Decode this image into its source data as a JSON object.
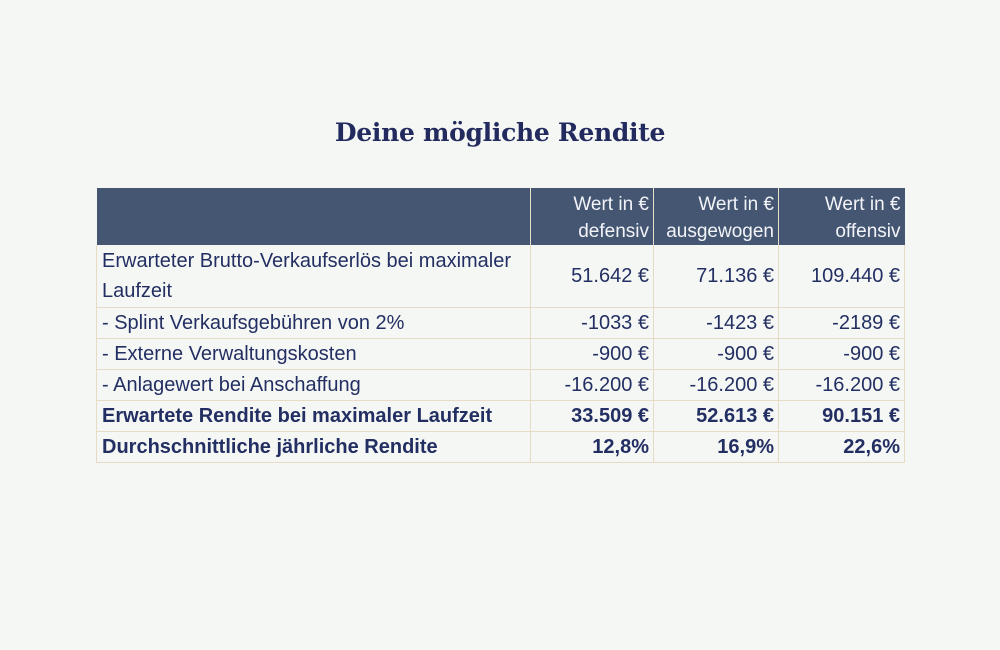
{
  "title": "Deine mögliche Rendite",
  "table": {
    "header": {
      "label": "",
      "defensiv": [
        "Wert in €",
        "defensiv"
      ],
      "ausgewogen": [
        "Wert in €",
        "ausgewogen"
      ],
      "offensiv": [
        "Wert in €",
        "offensiv"
      ]
    },
    "rows": [
      {
        "label": "Erwarteter Brutto-Verkaufserlös bei maximaler Laufzeit",
        "defensiv": "51.642 €",
        "ausgewogen": "71.136 €",
        "offensiv": "109.440 €"
      },
      {
        "label": "- Splint Verkaufsgebühren von 2%",
        "defensiv": "-1033 €",
        "ausgewogen": "-1423 €",
        "offensiv": "-2189 €"
      },
      {
        "label": "- Externe Verwaltungskosten",
        "defensiv": "-900 €",
        "ausgewogen": "-900 €",
        "offensiv": "-900 €"
      },
      {
        "label": "- Anlagewert bei Anschaffung",
        "defensiv": "-16.200 €",
        "ausgewogen": "-16.200 €",
        "offensiv": "-16.200 €"
      },
      {
        "label": "Erwartete Rendite bei maximaler Laufzeit",
        "defensiv": "33.509 €",
        "ausgewogen": "52.613 €",
        "offensiv": "90.151 €"
      },
      {
        "label": "Durchschnittliche jährliche Rendite",
        "defensiv": "12,8%",
        "ausgewogen": "16,9%",
        "offensiv": "22,6%"
      }
    ]
  },
  "colors": {
    "header_bg": "#455673",
    "text": "#232f62",
    "border": "#e6dcc5",
    "background": "#f5f7f5"
  }
}
